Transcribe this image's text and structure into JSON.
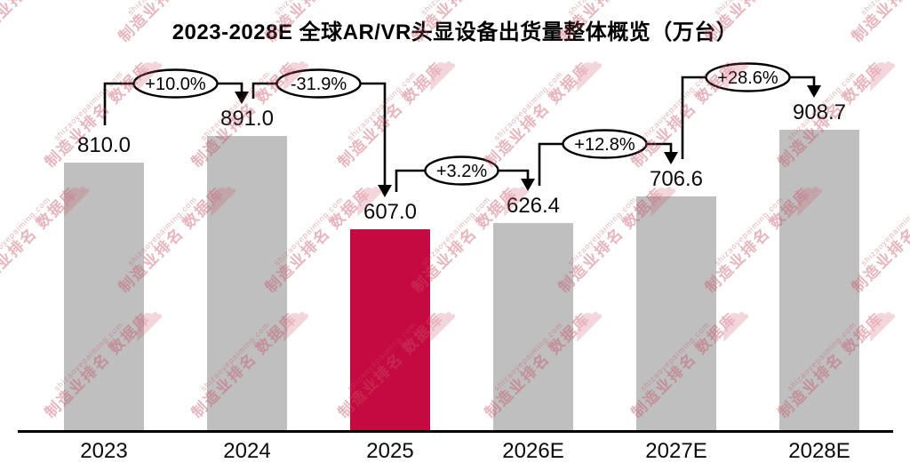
{
  "chart_data": {
    "type": "bar",
    "title": "2023-2028E 全球AR/VR头显设备出货量整体概览（万台）",
    "unit": "万台",
    "categories": [
      "2023",
      "2024",
      "2025",
      "2026E",
      "2027E",
      "2028E"
    ],
    "values": [
      810.0,
      891.0,
      607.0,
      626.4,
      706.6,
      908.7
    ],
    "value_labels": [
      "810.0",
      "891.0",
      "607.0",
      "626.4",
      "706.6",
      "908.7"
    ],
    "growth_labels": [
      "+10.0%",
      "-31.9%",
      "+3.2%",
      "+12.8%",
      "+28.6%"
    ],
    "bar_colors": [
      "#bfbfbf",
      "#bfbfbf",
      "#c40a41",
      "#bfbfbf",
      "#bfbfbf",
      "#bfbfbf"
    ],
    "highlight_index": 2,
    "highlight_color": "#c40a41",
    "base_bar_color": "#bfbfbf",
    "axis_color": "#000000",
    "xlabel": "",
    "ylabel": "",
    "ylim": [
      0,
      950
    ],
    "grid": false,
    "legend": false
  },
  "watermark": {
    "url_text": "shizaoyepaiming.com",
    "brand_text": "制造业排名",
    "db_text": "数据库",
    "cloud_icon": "☁",
    "color": "#c94f63"
  }
}
